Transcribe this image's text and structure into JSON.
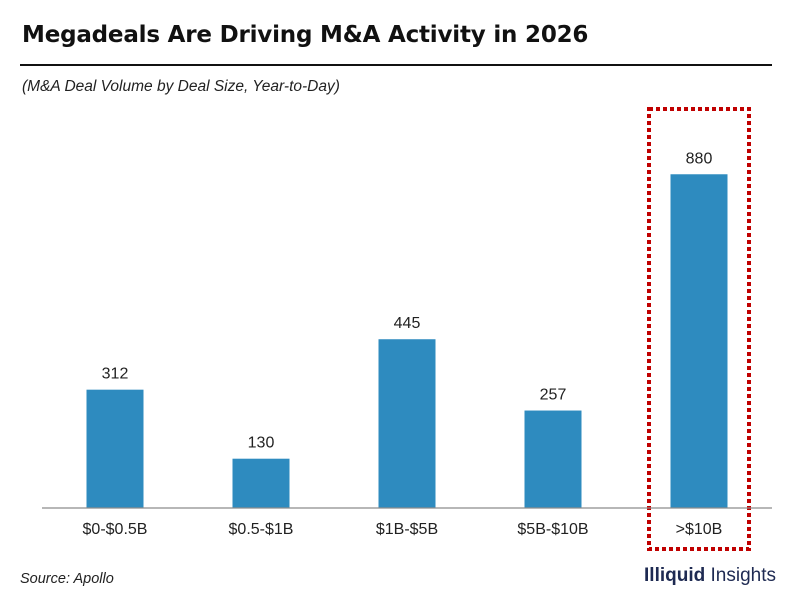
{
  "header": {
    "title": "Megadeals Are Driving M&A Activity in 2026",
    "subtitle": "(M&A Deal Volume by Deal Size, Year-to-Day)"
  },
  "footer": {
    "source": "Source: Apollo",
    "brand_bold": "Illiquid",
    "brand_regular": " Insights"
  },
  "colors": {
    "bar": "#2e8bbf",
    "highlight_box": "#c00000",
    "axis": "#8c8c8c"
  },
  "chart_data": {
    "type": "bar",
    "title": "Megadeals Are Driving M&A Activity in 2026",
    "subtitle": "(M&A Deal Volume by Deal Size, Year-to-Day)",
    "categories": [
      "$0-$0.5B",
      "$0.5-$1B",
      "$1B-$5B",
      "$5B-$10B",
      ">$10B"
    ],
    "values": [
      312,
      130,
      445,
      257,
      880
    ],
    "data_labels": [
      "312",
      "130",
      "445",
      "257",
      "880"
    ],
    "xlabel": "",
    "ylabel": "",
    "ylim": [
      0,
      1000
    ],
    "grid": false,
    "legend": "none",
    "highlighted_category": ">$10B",
    "highlight_style": "dotted-box"
  }
}
